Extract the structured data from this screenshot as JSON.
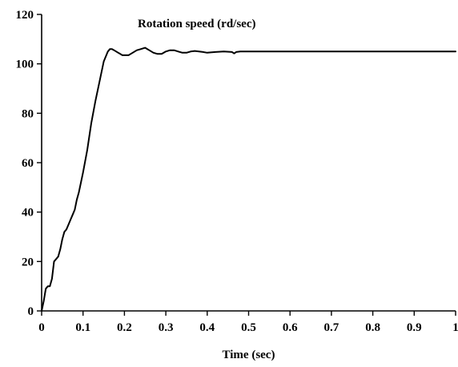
{
  "chart_data": {
    "type": "line",
    "title": "",
    "annotation": "Rotation speed (rd/sec)",
    "xlabel": "Time (sec)",
    "ylabel": "",
    "xlim": [
      0,
      1
    ],
    "ylim": [
      0,
      120
    ],
    "xticks": [
      0,
      0.1,
      0.2,
      0.3,
      0.4,
      0.5,
      0.6,
      0.7,
      0.8,
      0.9,
      1
    ],
    "xtick_labels": [
      "0",
      "0.1",
      "0.2",
      "0.3",
      "0.4",
      "0.5",
      "0.6",
      "0.7",
      "0.8",
      "0.9",
      "1"
    ],
    "yticks": [
      0,
      20,
      40,
      60,
      80,
      100,
      120
    ],
    "ytick_labels": [
      "0",
      "20",
      "40",
      "60",
      "80",
      "100",
      "120"
    ],
    "grid": false,
    "legend": "none",
    "series": [
      {
        "color": "#000000",
        "x": [
          0,
          0.005,
          0.01,
          0.015,
          0.02,
          0.025,
          0.03,
          0.035,
          0.04,
          0.045,
          0.05,
          0.055,
          0.06,
          0.065,
          0.07,
          0.075,
          0.08,
          0.085,
          0.09,
          0.1,
          0.11,
          0.12,
          0.13,
          0.14,
          0.15,
          0.16,
          0.165,
          0.17,
          0.175,
          0.18,
          0.185,
          0.19,
          0.195,
          0.2,
          0.205,
          0.21,
          0.215,
          0.22,
          0.23,
          0.24,
          0.25,
          0.26,
          0.27,
          0.28,
          0.29,
          0.3,
          0.31,
          0.32,
          0.33,
          0.34,
          0.35,
          0.36,
          0.37,
          0.38,
          0.39,
          0.4,
          0.42,
          0.44,
          0.46,
          0.465,
          0.47,
          0.48,
          0.5,
          0.6,
          0.7,
          0.8,
          0.9,
          1.0
        ],
        "y": [
          0,
          4,
          9,
          10,
          10,
          13,
          20,
          21,
          22,
          25,
          29,
          32,
          33,
          35,
          37,
          39,
          41,
          45,
          48,
          56,
          65,
          76,
          85,
          93,
          101,
          105,
          106,
          106,
          105.5,
          105,
          104.5,
          104,
          103.5,
          103.5,
          103.5,
          103.5,
          104,
          104.5,
          105.5,
          106,
          106.5,
          105.5,
          104.5,
          104,
          104,
          105,
          105.5,
          105.5,
          105,
          104.5,
          104.5,
          105,
          105.2,
          105,
          104.8,
          104.5,
          104.8,
          105,
          104.8,
          104.2,
          104.8,
          105,
          105,
          105,
          105,
          105,
          105,
          105
        ]
      }
    ]
  }
}
